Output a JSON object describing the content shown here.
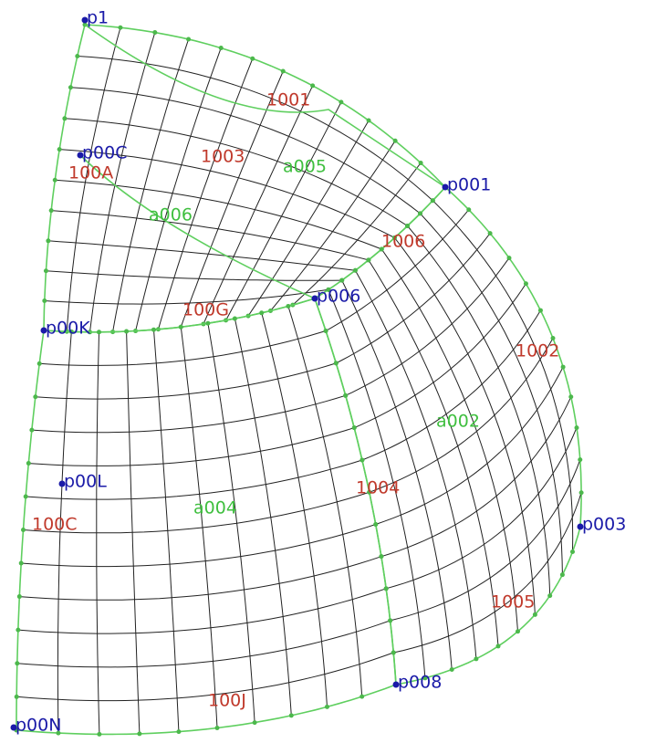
{
  "points": [
    "p1",
    "p00C",
    "p001",
    "p006",
    "p00K",
    "p00L",
    "p003",
    "p008",
    "p00N"
  ],
  "region_labels": [
    "1001",
    "100A",
    "1003",
    "1006",
    "100G",
    "1002",
    "1004",
    "100C",
    "1005",
    "100J"
  ],
  "curve_labels": [
    "a005",
    "a006",
    "a002",
    "a004"
  ]
}
